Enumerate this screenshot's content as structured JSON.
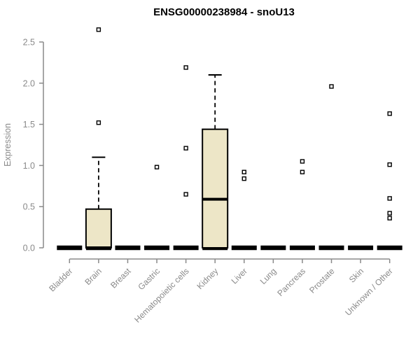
{
  "chart_data": {
    "type": "boxplot",
    "title": "ENSG00000238984 - snoU13",
    "ylabel": "Expression",
    "xlabel": "",
    "ylim": [
      0,
      2.5
    ],
    "y_ticks": [
      0.0,
      0.5,
      1.0,
      1.5,
      2.0,
      2.5
    ],
    "grid": false,
    "legend": "none",
    "categories": [
      "Bladder",
      "Brain",
      "Breast",
      "Gastric",
      "Hematopoietic cells",
      "Kidney",
      "Liver",
      "Lung",
      "Pancreas",
      "Prostate",
      "Skin",
      "Unknown / Other"
    ],
    "series": [
      {
        "label": "Bladder",
        "whisker_low": 0,
        "q1": 0,
        "median": 0,
        "q3": 0,
        "whisker_high": 0,
        "outliers": []
      },
      {
        "label": "Brain",
        "whisker_low": 0,
        "q1": 0,
        "median": 0,
        "q3": 0.47,
        "whisker_high": 1.1,
        "outliers": [
          1.52,
          2.65
        ]
      },
      {
        "label": "Breast",
        "whisker_low": 0,
        "q1": 0,
        "median": 0,
        "q3": 0,
        "whisker_high": 0,
        "outliers": []
      },
      {
        "label": "Gastric",
        "whisker_low": 0,
        "q1": 0,
        "median": 0,
        "q3": 0,
        "whisker_high": 0,
        "outliers": [
          0.98
        ]
      },
      {
        "label": "Hematopoietic cells",
        "whisker_low": 0,
        "q1": 0,
        "median": 0,
        "q3": 0,
        "whisker_high": 0,
        "outliers": [
          0.65,
          1.21,
          2.19
        ]
      },
      {
        "label": "Kidney",
        "whisker_low": 0,
        "q1": 0,
        "median": 0.59,
        "q3": 1.44,
        "whisker_high": 2.1,
        "outliers": []
      },
      {
        "label": "Liver",
        "whisker_low": 0,
        "q1": 0,
        "median": 0,
        "q3": 0,
        "whisker_high": 0,
        "outliers": [
          0.84,
          0.92
        ]
      },
      {
        "label": "Lung",
        "whisker_low": 0,
        "q1": 0,
        "median": 0,
        "q3": 0,
        "whisker_high": 0,
        "outliers": []
      },
      {
        "label": "Pancreas",
        "whisker_low": 0,
        "q1": 0,
        "median": 0,
        "q3": 0,
        "whisker_high": 0,
        "outliers": [
          0.92,
          1.05
        ]
      },
      {
        "label": "Prostate",
        "whisker_low": 0,
        "q1": 0,
        "median": 0,
        "q3": 0,
        "whisker_high": 0,
        "outliers": [
          1.96
        ]
      },
      {
        "label": "Skin",
        "whisker_low": 0,
        "q1": 0,
        "median": 0,
        "q3": 0,
        "whisker_high": 0,
        "outliers": []
      },
      {
        "label": "Unknown / Other",
        "whisker_low": 0,
        "q1": 0,
        "median": 0,
        "q3": 0,
        "whisker_high": 0,
        "outliers": [
          0.36,
          0.42,
          0.6,
          1.01,
          1.63
        ]
      }
    ],
    "colors": {
      "box_fill": "#EDE6C7",
      "box_border": "#000000",
      "median": "#000000",
      "whisker": "#000000",
      "outlier_stroke": "#000000",
      "outlier_fill": "#FFFFFF",
      "axis": "#8A8A8A",
      "tick_label": "#8A8A8A",
      "title": "#000000",
      "background": "#FFFFFF"
    }
  }
}
